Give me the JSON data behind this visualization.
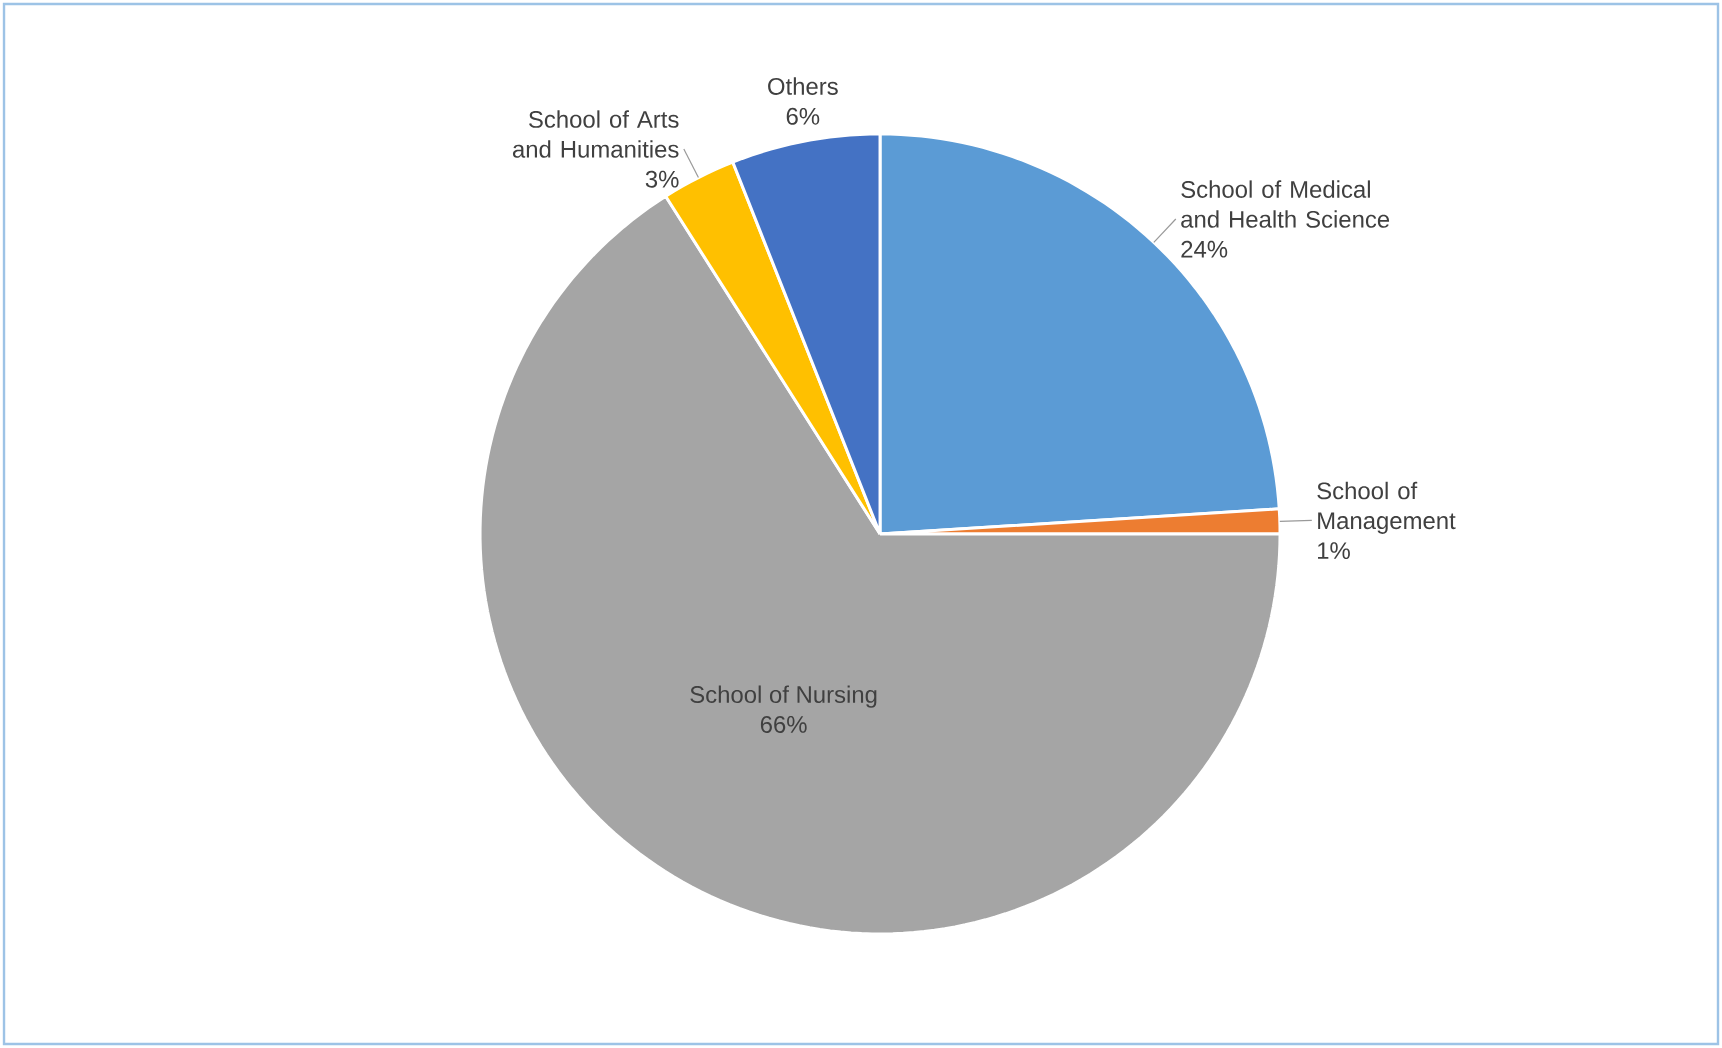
{
  "chart_data": {
    "type": "pie",
    "categories": [
      "School of Medical and Health Science",
      "School of Management",
      "School of Nursing",
      "School of Arts and Humanities",
      "Others"
    ],
    "values": [
      24,
      1,
      66,
      3,
      6
    ],
    "value_labels": [
      "24%",
      "1%",
      "66%",
      "3%",
      "6%"
    ],
    "colors": [
      "#5b9bd5",
      "#ed7d31",
      "#a5a5a5",
      "#ffc000",
      "#4472c4"
    ]
  }
}
